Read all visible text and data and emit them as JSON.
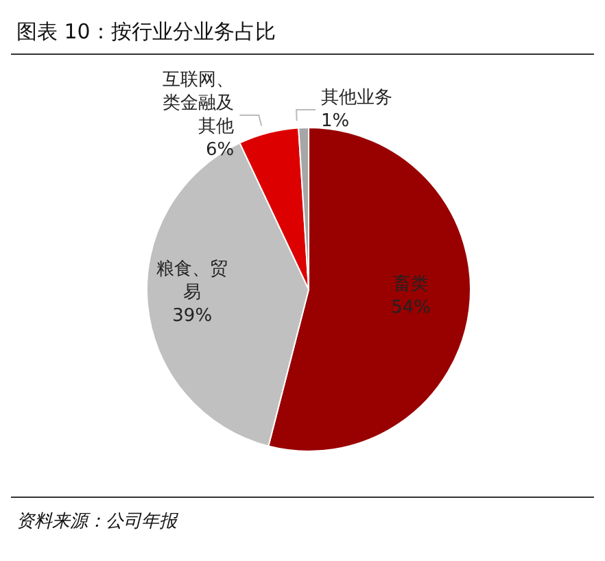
{
  "chart_data": {
    "type": "pie",
    "title": "图表 10：按行业分业务占比",
    "categories": [
      "畜类",
      "粮食、贸易",
      "互联网、类金融及其他",
      "其他业务"
    ],
    "values": [
      54,
      39,
      6,
      1
    ],
    "colors": [
      "#990000",
      "#c0c0c0",
      "#dd0000",
      "#a6a6a6"
    ],
    "value_labels": [
      "54%",
      "39%",
      "6%",
      "1%"
    ],
    "annotations": [
      "资料来源：公司年报"
    ]
  }
}
